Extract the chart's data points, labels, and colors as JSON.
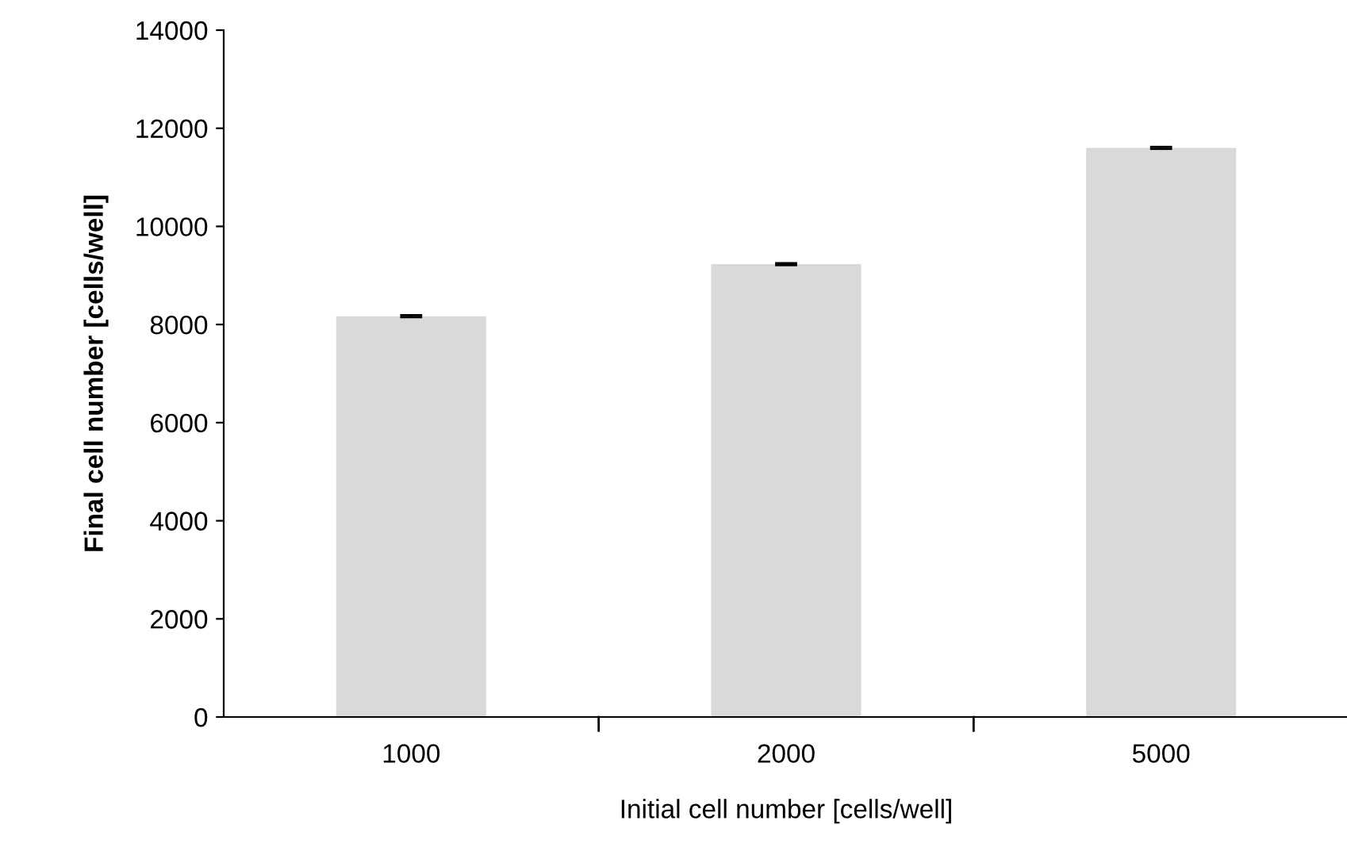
{
  "chart_data": {
    "type": "bar",
    "xlabel": "Initial cell number [cells/well]",
    "ylabel": "Final cell number [cells/well]",
    "categories": [
      "1000",
      "2000",
      "5000"
    ],
    "values": [
      8170,
      9230,
      11600
    ],
    "errors": [
      20,
      20,
      20
    ],
    "color": "#d9d9d9",
    "ylim": [
      0,
      14000
    ],
    "yticks": [
      0,
      2000,
      4000,
      6000,
      8000,
      10000,
      12000,
      14000
    ],
    "grid": false
  }
}
